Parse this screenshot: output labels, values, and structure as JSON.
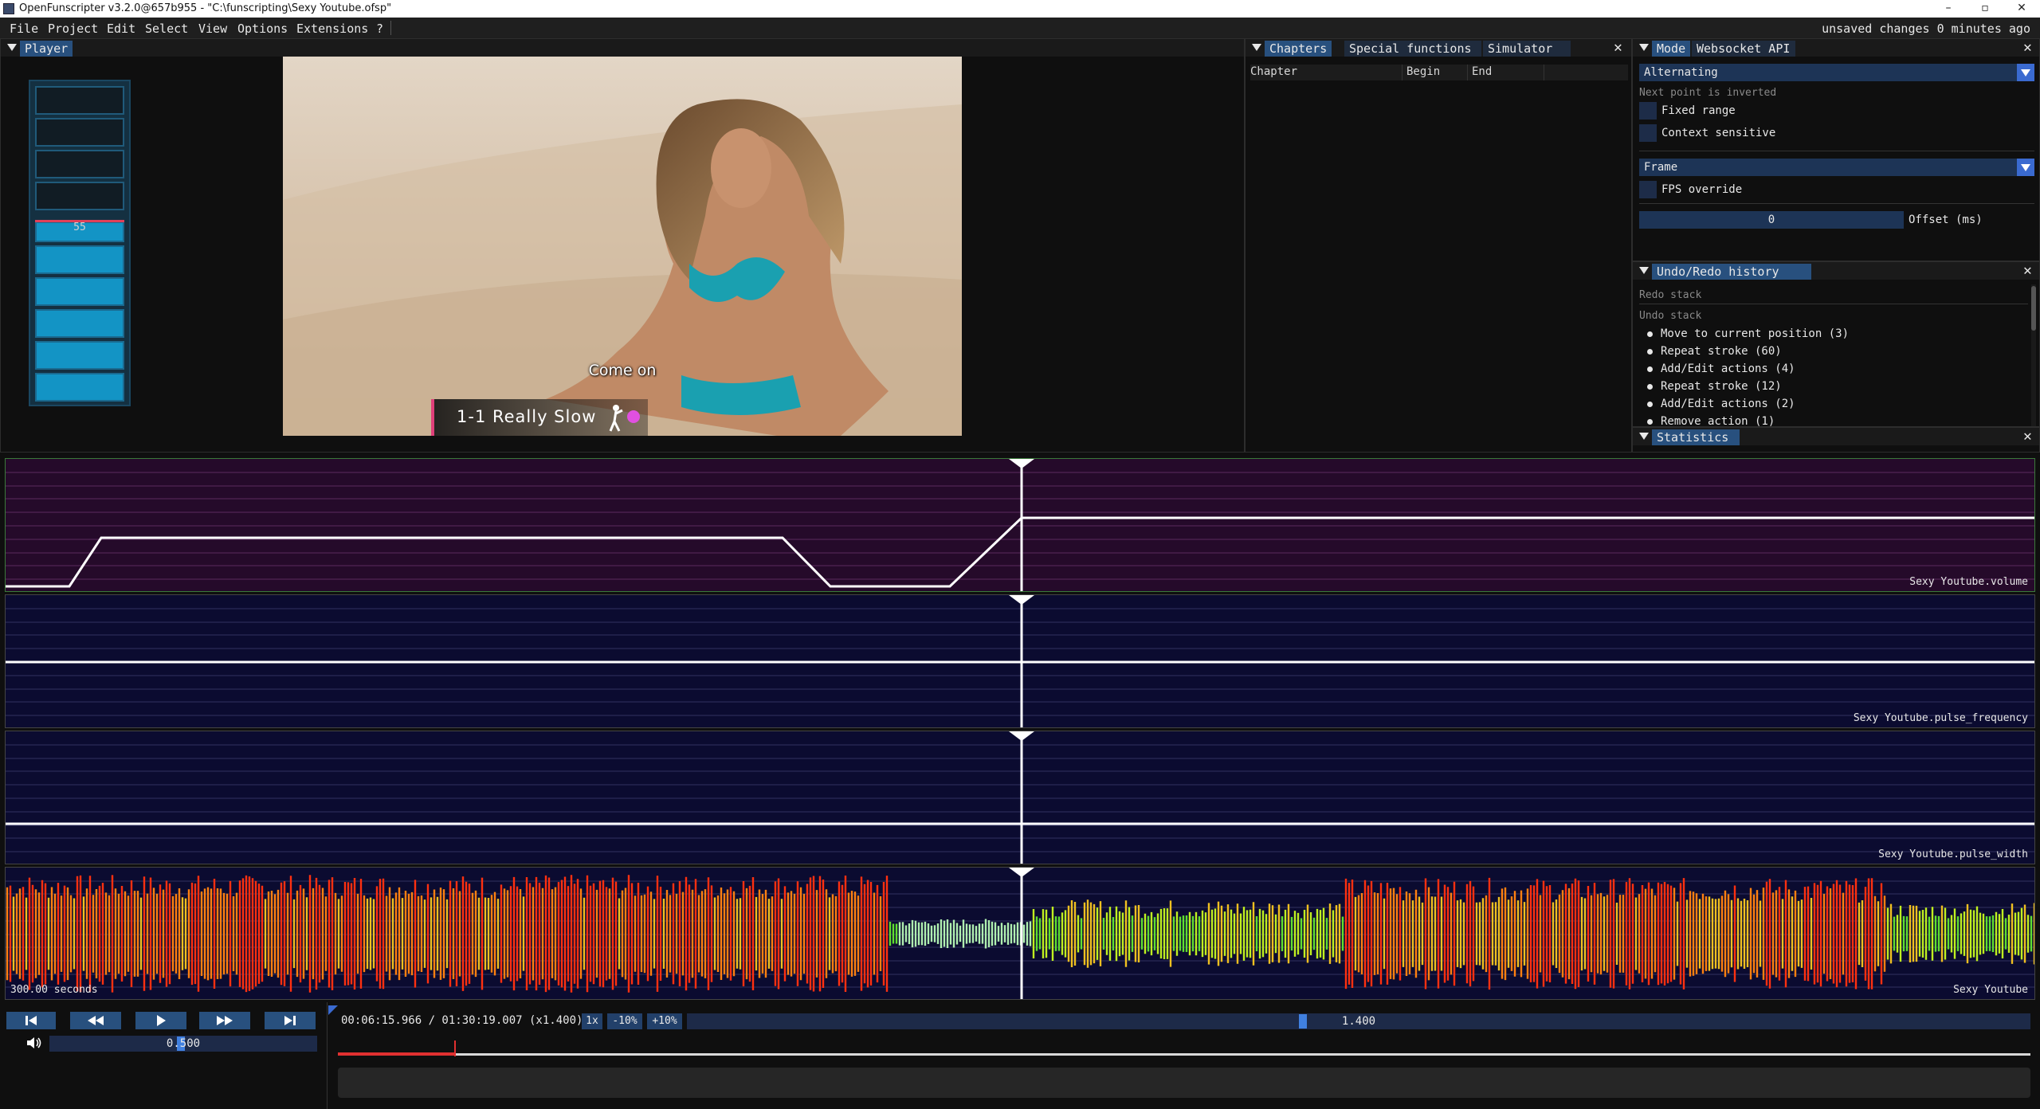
{
  "titlebar": {
    "title": "OpenFunscripter v3.2.0@657b955 - \"C:\\funscripting\\Sexy Youtube.ofsp\"",
    "minimize": "–",
    "maximize": "▫",
    "close": "✕"
  },
  "menubar": {
    "items": [
      "File",
      "Project",
      "Edit",
      "Select",
      "View",
      "Options",
      "Extensions",
      "?"
    ],
    "status": "unsaved changes 0 minutes ago"
  },
  "player": {
    "tab": "Player",
    "meter_value": "55",
    "meter_fraction": 0.55,
    "subtitle": "Come on",
    "stroke_label": "1-1 Really Slow"
  },
  "chapters": {
    "tabs": [
      "Chapters",
      "Special functions",
      "Simulator"
    ],
    "columns": [
      "Chapter",
      "Begin",
      "End"
    ]
  },
  "mode": {
    "tabs": [
      "Mode",
      "Websocket API"
    ],
    "mode_value": "Alternating",
    "next_point_note": "Next point is inverted",
    "fixed_range": "Fixed range",
    "context_sensitive": "Context sensitive",
    "frame_value": "Frame",
    "fps_override": "FPS override",
    "offset_value": "0",
    "offset_label": "Offset (ms)"
  },
  "undo": {
    "tab": "Undo/Redo history",
    "redo_stack": "Redo stack",
    "undo_stack": "Undo stack",
    "items": [
      "Move to current position (3)",
      "Repeat stroke (60)",
      "Add/Edit actions (4)",
      "Repeat stroke (12)",
      "Add/Edit actions (2)",
      "Remove action (1)"
    ]
  },
  "stats": {
    "tab": "Statistics"
  },
  "tracks": {
    "volume": "Sexy Youtube.volume",
    "pulse_frequency": "Sexy Youtube.pulse_frequency",
    "pulse_width": "Sexy Youtube.pulse_width",
    "audio": "Sexy Youtube",
    "audio_seconds": "300.00 seconds"
  },
  "controls": {
    "time": "00:06:15.966 / 01:30:19.007 (x1.400)",
    "speed_1x": "1x",
    "speed_minus": "-10%",
    "speed_plus": "+10%",
    "speed_value": "1.400",
    "volume_value": "0.500",
    "progress_fraction": 0.069
  },
  "colors": {
    "accent": "#28507e",
    "volume_bg": "#250a2a",
    "track_bg": "#0b0b30",
    "meter_fill": "#1394c5",
    "progress": "#e03030"
  }
}
